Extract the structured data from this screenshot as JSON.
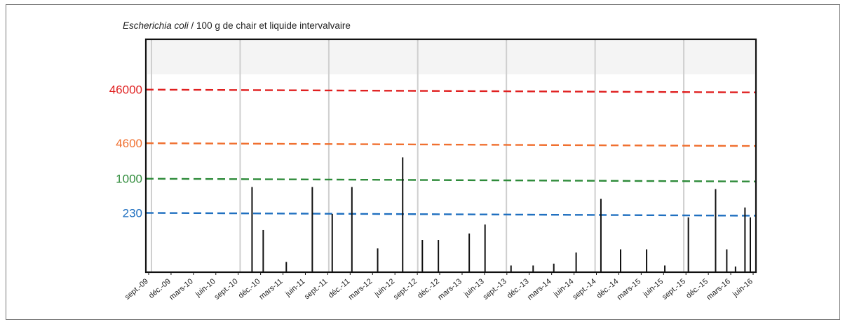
{
  "title": {
    "species": "Escherichia coli",
    "unit": " / 100 g de chair et liquide intervalvaire"
  },
  "chart_data": {
    "type": "bar",
    "title": "Escherichia coli / 100 g de chair et liquide intervalvaire",
    "xlabel": "",
    "ylabel": "",
    "x_start": "2009-09",
    "x_end": "2016-06",
    "tick_labels": [
      "sept.-09",
      "déc.-09",
      "mars-10",
      "juin-10",
      "sept.-10",
      "déc.-10",
      "mars-11",
      "juin-11",
      "sept.-11",
      "déc.-11",
      "mars-12",
      "juin-12",
      "sept.-12",
      "déc.-12",
      "mars-13",
      "juin-13",
      "sept.-13",
      "déc.-13",
      "mars-14",
      "juin-14",
      "sept.-14",
      "déc.-14",
      "mars-15",
      "juin-15",
      "sept.-15",
      "déc.-15",
      "mars-16",
      "juin-16"
    ],
    "grid": "vertical lines at each September",
    "y_scale": "log",
    "ylim": [
      18,
      400000
    ],
    "thresholds": [
      {
        "value": 46000,
        "label": "46000",
        "color": "#e02020"
      },
      {
        "value": 4600,
        "label": "4600",
        "color": "#f07030"
      },
      {
        "value": 1000,
        "label": "1000",
        "color": "#2e8b3a"
      },
      {
        "value": 230,
        "label": "230",
        "color": "#2070c0"
      }
    ],
    "points": [
      {
        "x": "2010-10-20",
        "y": 700
      },
      {
        "x": "2010-12-05",
        "y": 110
      },
      {
        "x": "2011-03-10",
        "y": 28
      },
      {
        "x": "2011-06-25",
        "y": 700
      },
      {
        "x": "2011-09-15",
        "y": 220
      },
      {
        "x": "2011-12-05",
        "y": 700
      },
      {
        "x": "2012-03-20",
        "y": 50
      },
      {
        "x": "2012-07-01",
        "y": 2500
      },
      {
        "x": "2012-09-20",
        "y": 72
      },
      {
        "x": "2012-11-25",
        "y": 72
      },
      {
        "x": "2013-04-01",
        "y": 95
      },
      {
        "x": "2013-06-05",
        "y": 140
      },
      {
        "x": "2013-09-20",
        "y": 24
      },
      {
        "x": "2013-12-20",
        "y": 24
      },
      {
        "x": "2014-03-15",
        "y": 26
      },
      {
        "x": "2014-06-15",
        "y": 42
      },
      {
        "x": "2014-09-25",
        "y": 420
      },
      {
        "x": "2014-12-15",
        "y": 48
      },
      {
        "x": "2015-04-01",
        "y": 48
      },
      {
        "x": "2015-06-15",
        "y": 24
      },
      {
        "x": "2015-09-20",
        "y": 190
      },
      {
        "x": "2016-01-10",
        "y": 640
      },
      {
        "x": "2016-02-25",
        "y": 48
      },
      {
        "x": "2016-04-01",
        "y": 23
      },
      {
        "x": "2016-05-10",
        "y": 290
      },
      {
        "x": "2016-06-01",
        "y": 190
      }
    ]
  }
}
